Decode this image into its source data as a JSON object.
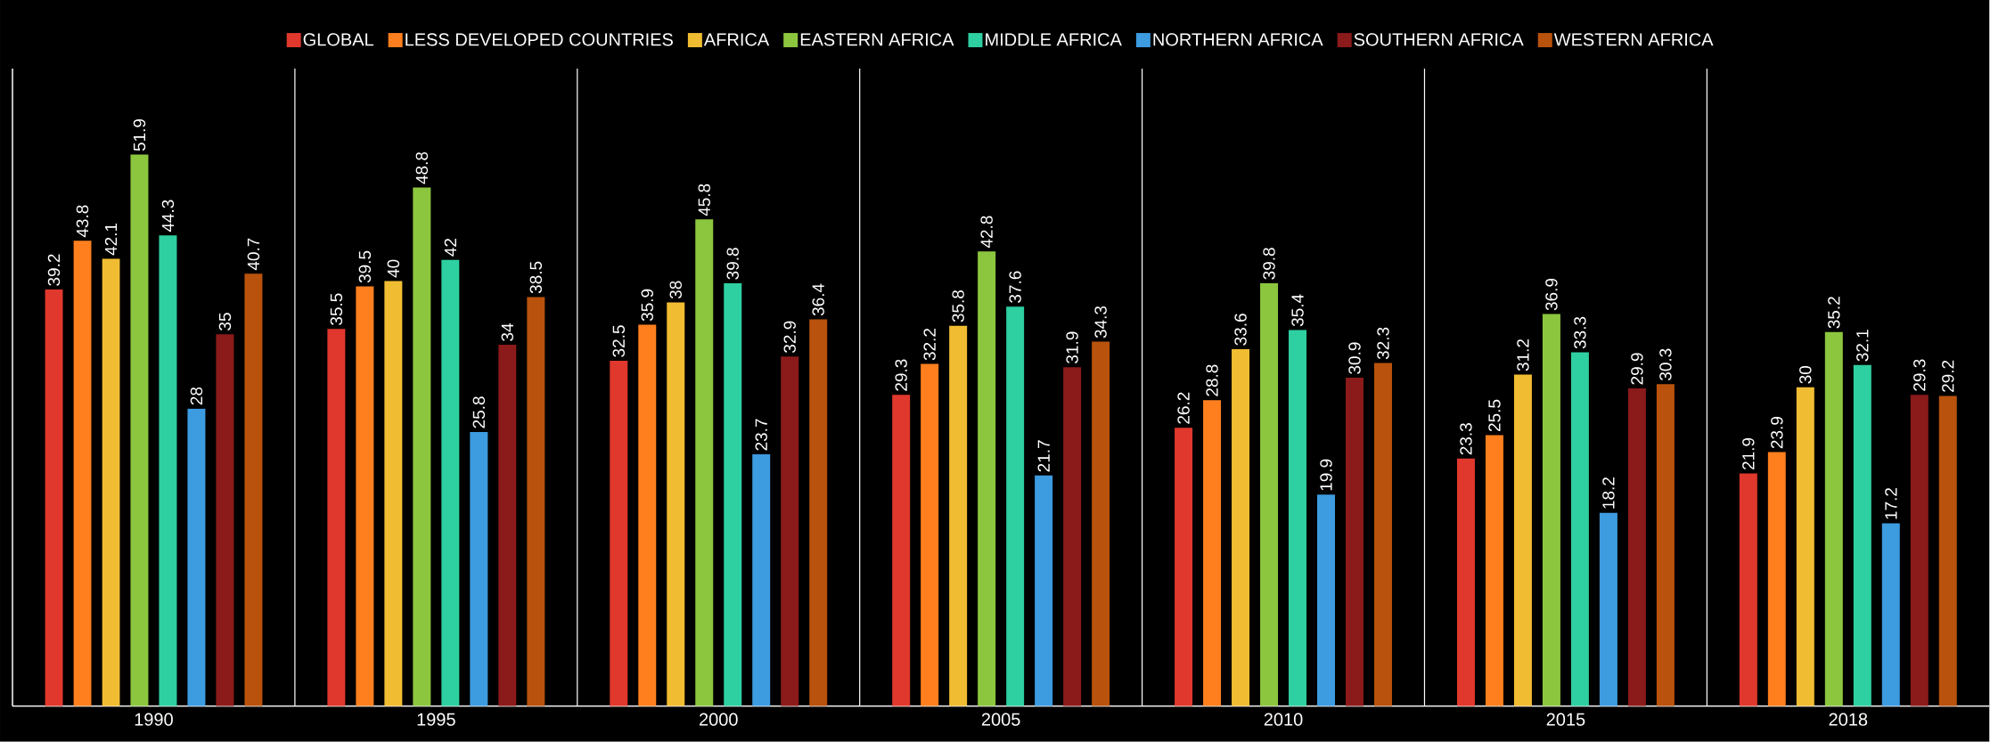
{
  "chart_data": {
    "type": "bar",
    "categories": [
      "1990",
      "1995",
      "2000",
      "2005",
      "2010",
      "2015",
      "2018"
    ],
    "series": [
      {
        "name": "GLOBAL",
        "color": "#e0382c",
        "values": [
          39.2,
          35.5,
          32.5,
          29.3,
          26.2,
          23.3,
          21.9
        ]
      },
      {
        "name": "LESS DEVELOPED COUNTRIES",
        "color": "#ff7f1e",
        "values": [
          43.8,
          39.5,
          35.9,
          32.2,
          28.8,
          25.5,
          23.9
        ]
      },
      {
        "name": "AFRICA",
        "color": "#f0bc32",
        "values": [
          42.1,
          40,
          38,
          35.8,
          33.6,
          31.2,
          30
        ]
      },
      {
        "name": "EASTERN AFRICA",
        "color": "#8cc63f",
        "values": [
          51.9,
          48.8,
          45.8,
          42.8,
          39.8,
          36.9,
          35.2
        ]
      },
      {
        "name": "MIDDLE AFRICA",
        "color": "#2ecfa0",
        "values": [
          44.3,
          42,
          39.8,
          37.6,
          35.4,
          33.3,
          32.1
        ]
      },
      {
        "name": "NORTHERN AFRICA",
        "color": "#3d9be0",
        "values": [
          28,
          25.8,
          23.7,
          21.7,
          19.9,
          18.2,
          17.2
        ]
      },
      {
        "name": "SOUTHERN AFRICA",
        "color": "#8b1a1a",
        "values": [
          35,
          34,
          32.9,
          31.9,
          30.9,
          29.9,
          29.3
        ]
      },
      {
        "name": "WESTERN AFRICA",
        "color": "#b8520c",
        "values": [
          40.7,
          38.5,
          36.4,
          34.3,
          32.3,
          30.3,
          29.2
        ]
      }
    ],
    "data_labels": true,
    "legend": "top",
    "grid": "x"
  }
}
